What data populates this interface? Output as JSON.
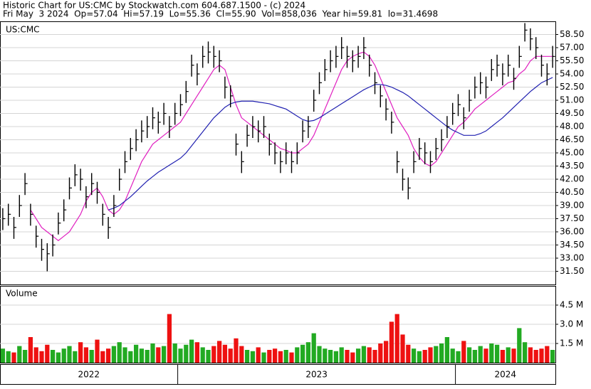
{
  "chart_data": {
    "type": "stock",
    "title": "Historic Chart for US:CMC by Stockwatch.com 604.687.1500 - (c) 2024",
    "subtitle": "Fri May  3 2024  Op=57.04  Hi=57.19  Lo=55.36  Cl=55.90  Vol=858,036  Year hi=59.81  lo=31.4698",
    "symbol": "US:CMC",
    "categories": [
      "2022",
      null,
      null,
      null,
      null,
      null,
      null,
      null,
      null,
      null,
      null,
      null,
      null,
      null,
      null,
      null,
      null,
      null,
      null,
      null,
      null,
      null,
      null,
      null,
      null,
      null,
      null,
      null,
      null,
      null,
      null,
      null,
      "2023",
      null,
      null,
      null,
      null,
      null,
      null,
      null,
      null,
      null,
      null,
      null,
      null,
      null,
      null,
      null,
      null,
      null,
      null,
      null,
      null,
      null,
      null,
      null,
      null,
      null,
      null,
      null,
      null,
      null,
      null,
      null,
      null,
      null,
      null,
      null,
      null,
      null,
      null,
      null,
      null,
      null,
      null,
      null,
      null,
      null,
      null,
      null,
      null,
      null,
      "2024",
      null,
      null,
      null,
      null,
      null,
      null,
      null,
      null,
      null,
      null,
      null,
      null,
      null,
      null,
      null,
      null,
      null
    ],
    "high": [
      38.7,
      39.2,
      37.7,
      40.2,
      42.7,
      39.2,
      36.7,
      35.2,
      34.7,
      35.7,
      38.2,
      39.7,
      42.2,
      43.7,
      43.2,
      41.2,
      42.7,
      41.7,
      39.2,
      37.7,
      40.2,
      43.2,
      45.2,
      46.7,
      47.7,
      48.7,
      49.2,
      50.2,
      49.7,
      50.7,
      49.2,
      50.7,
      51.7,
      53.2,
      56.2,
      55.2,
      57.2,
      57.7,
      57.2,
      56.7,
      53.7,
      52.7,
      47.2,
      45.2,
      48.2,
      49.2,
      48.7,
      49.2,
      47.2,
      46.2,
      45.2,
      46.2,
      45.2,
      46.2,
      48.7,
      49.2,
      52.2,
      54.2,
      55.7,
      56.7,
      57.2,
      58.2,
      57.2,
      56.7,
      57.2,
      58.2,
      56.2,
      54.2,
      52.7,
      51.2,
      49.7,
      45.2,
      43.2,
      42.2,
      45.2,
      46.7,
      46.2,
      45.2,
      46.7,
      47.7,
      49.2,
      50.7,
      51.7,
      50.2,
      52.2,
      53.7,
      54.2,
      53.7,
      55.7,
      56.2,
      55.2,
      56.2,
      54.7,
      57.2,
      59.8,
      59.2,
      58.2,
      56.2,
      55.2,
      57.2
    ],
    "low": [
      36.2,
      36.7,
      35.2,
      37.7,
      40.2,
      36.7,
      34.2,
      32.7,
      31.5,
      33.2,
      35.7,
      37.2,
      39.7,
      41.2,
      40.7,
      38.7,
      40.2,
      39.2,
      36.7,
      35.2,
      37.7,
      40.7,
      42.7,
      44.2,
      45.2,
      46.2,
      46.7,
      47.7,
      47.2,
      48.2,
      46.7,
      48.2,
      49.2,
      50.7,
      53.7,
      52.7,
      54.7,
      55.2,
      54.7,
      54.2,
      51.2,
      50.2,
      44.7,
      42.7,
      45.7,
      46.7,
      46.2,
      46.7,
      44.7,
      43.7,
      42.7,
      43.7,
      42.7,
      43.7,
      46.2,
      46.7,
      49.7,
      51.7,
      53.2,
      54.2,
      54.7,
      55.7,
      54.7,
      54.2,
      54.7,
      55.7,
      53.7,
      51.7,
      50.2,
      48.7,
      47.2,
      42.7,
      40.7,
      39.7,
      42.7,
      44.2,
      43.7,
      42.7,
      44.2,
      45.2,
      46.7,
      48.2,
      49.2,
      47.7,
      49.7,
      51.2,
      51.7,
      51.2,
      53.2,
      53.7,
      52.7,
      53.7,
      52.2,
      54.7,
      57.7,
      56.7,
      55.7,
      53.7,
      52.7,
      54.7
    ],
    "close": [
      37.5,
      38,
      36.5,
      39,
      41.5,
      38,
      35.5,
      34,
      33.5,
      34.5,
      37,
      38.5,
      41,
      42.5,
      42,
      40,
      41.5,
      40.5,
      38,
      36.5,
      39,
      42,
      44,
      45.5,
      46.5,
      47.5,
      48,
      49,
      48.5,
      49.5,
      48,
      49.5,
      50.5,
      52,
      55,
      54,
      56,
      56.5,
      56,
      55.5,
      52.5,
      51.5,
      46,
      44,
      47,
      48,
      47.5,
      48,
      46,
      45,
      44,
      45,
      44,
      45,
      47.5,
      48,
      51,
      53,
      54.5,
      55.5,
      56,
      57,
      56,
      55.5,
      56,
      57,
      55,
      53,
      51.5,
      50,
      48.5,
      44,
      42,
      41,
      44,
      45.5,
      45,
      44,
      45.5,
      46.5,
      48,
      49.5,
      50.5,
      49,
      51,
      52.5,
      53,
      52.5,
      54.5,
      55,
      54,
      55,
      53.5,
      56,
      59,
      58,
      57,
      55,
      54,
      56
    ],
    "bar_color": "#000000",
    "series": [
      {
        "color": "#e020c0",
        "values": [
          null,
          null,
          null,
          null,
          null,
          38.5,
          37.5,
          36.5,
          36,
          35.5,
          35,
          35.5,
          36,
          37,
          38,
          39.5,
          40.5,
          41,
          40,
          38.5,
          38,
          38.5,
          39.5,
          41,
          42.5,
          44,
          45,
          46,
          46.5,
          47,
          47.5,
          48,
          48.5,
          49.5,
          50.5,
          51.5,
          52.5,
          53.5,
          54.5,
          55,
          54.5,
          52.5,
          50.5,
          49,
          48.5,
          48,
          47.5,
          47,
          46.5,
          46,
          45.5,
          45.3,
          45,
          45,
          45.5,
          46,
          47,
          48.5,
          50,
          51.5,
          53,
          54.5,
          55.5,
          56,
          56.3,
          56.5,
          56,
          55,
          53.5,
          52,
          50.5,
          49,
          48,
          47,
          45.5,
          44.5,
          43.8,
          43.5,
          44,
          45,
          46,
          47,
          48,
          48.5,
          49.2,
          50,
          50.5,
          51,
          51.5,
          52,
          52.5,
          53,
          53.2,
          54,
          54.5,
          55.5,
          56,
          56,
          56,
          56
        ]
      },
      {
        "color": "#2020b0",
        "values": [
          null,
          null,
          null,
          null,
          null,
          null,
          null,
          null,
          null,
          null,
          null,
          null,
          null,
          null,
          null,
          null,
          null,
          null,
          null,
          38.5,
          38.7,
          39,
          39.5,
          40,
          40.6,
          41.2,
          41.8,
          42.3,
          42.8,
          43.2,
          43.6,
          44,
          44.4,
          45,
          45.8,
          46.6,
          47.4,
          48.2,
          49,
          49.6,
          50.2,
          50.6,
          50.8,
          50.9,
          50.9,
          50.9,
          50.8,
          50.7,
          50.6,
          50.4,
          50.2,
          50,
          49.6,
          49.2,
          48.8,
          48.6,
          48.7,
          49,
          49.4,
          49.8,
          50.2,
          50.6,
          51,
          51.4,
          51.8,
          52.2,
          52.5,
          52.8,
          52.8,
          52.7,
          52.5,
          52.2,
          51.9,
          51.5,
          51,
          50.5,
          50,
          49.5,
          49,
          48.5,
          48,
          47.6,
          47.3,
          47,
          47,
          47,
          47.2,
          47.5,
          48,
          48.5,
          49,
          49.6,
          50.2,
          50.8,
          51.4,
          52,
          52.5,
          53,
          53.3,
          53.6
        ]
      }
    ],
    "ylim": [
      30,
      60
    ],
    "yticks": [
      {
        "value": 31.5,
        "label": "31.50"
      },
      {
        "value": 33,
        "label": "33.00"
      },
      {
        "value": 34.5,
        "label": "34.50"
      },
      {
        "value": 36,
        "label": "36.00"
      },
      {
        "value": 37.5,
        "label": "37.50"
      },
      {
        "value": 39,
        "label": "39.00"
      },
      {
        "value": 40.5,
        "label": "40.50"
      },
      {
        "value": 42,
        "label": "42.00"
      },
      {
        "value": 43.5,
        "label": "43.50"
      },
      {
        "value": 45,
        "label": "45.00"
      },
      {
        "value": 46.5,
        "label": "46.50"
      },
      {
        "value": 48,
        "label": "48.00"
      },
      {
        "value": 49.5,
        "label": "49.50"
      },
      {
        "value": 51,
        "label": "51.00"
      },
      {
        "value": 52.5,
        "label": "52.50"
      },
      {
        "value": 54,
        "label": "54.00"
      },
      {
        "value": 55.5,
        "label": "55.50"
      },
      {
        "value": 57,
        "label": "57.00"
      },
      {
        "value": 58.5,
        "label": "58.50"
      }
    ],
    "grid": true,
    "volume": {
      "label": "Volume",
      "up_color": "#22aa22",
      "down_color": "#ee1111",
      "values": [
        1100000,
        900000,
        800000,
        1300000,
        1000000,
        2000000,
        1200000,
        900000,
        1400000,
        1000000,
        800000,
        1100000,
        1300000,
        900000,
        1600000,
        1200000,
        1000000,
        1800000,
        900000,
        1100000,
        1300000,
        1600000,
        1200000,
        900000,
        1400000,
        1100000,
        1000000,
        1500000,
        1200000,
        1300000,
        3800000,
        1500000,
        1100000,
        1400000,
        1800000,
        1600000,
        1200000,
        1000000,
        1300000,
        1700000,
        1400000,
        1100000,
        1900000,
        1300000,
        1000000,
        900000,
        1200000,
        800000,
        1000000,
        1100000,
        900000,
        1000000,
        800000,
        1200000,
        1400000,
        1600000,
        2300000,
        1300000,
        1100000,
        1000000,
        900000,
        1200000,
        1000000,
        800000,
        1100000,
        1300000,
        1200000,
        1000000,
        1500000,
        1700000,
        3200000,
        3800000,
        2200000,
        1400000,
        1100000,
        900000,
        1000000,
        1200000,
        1300000,
        1500000,
        2000000,
        1100000,
        900000,
        1700000,
        1200000,
        1000000,
        1300000,
        1100000,
        1500000,
        1400000,
        1000000,
        1200000,
        1100000,
        2700000,
        1600000,
        1200000,
        1000000,
        1100000,
        1300000,
        1000000
      ],
      "ylim": [
        0,
        6000000
      ],
      "yticks": [
        {
          "value": 1500000,
          "label": "1.5 M"
        },
        {
          "value": 3000000,
          "label": "3.0 M"
        },
        {
          "value": 4500000,
          "label": "4.5 M"
        }
      ]
    }
  }
}
